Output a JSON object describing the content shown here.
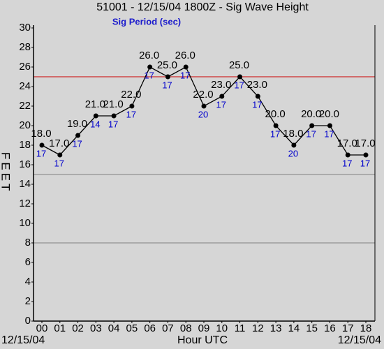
{
  "chart_data": {
    "type": "line",
    "title": "51001 - 12/15/04 1800Z - Sig Wave Height",
    "subtitle": "Sig Period (sec)",
    "ylabel": "FEET",
    "xlabel": "Hour UTC",
    "start_date": "12/15/04",
    "end_date": "12/15/04",
    "categories": [
      "00",
      "01",
      "02",
      "03",
      "04",
      "05",
      "06",
      "07",
      "08",
      "09",
      "10",
      "11",
      "12",
      "13",
      "14",
      "15",
      "16",
      "17",
      "18"
    ],
    "values": [
      18,
      17,
      19,
      21,
      21,
      22,
      26,
      25,
      26,
      22,
      23,
      25,
      23,
      20,
      18,
      20,
      20,
      17,
      17
    ],
    "value_labels": [
      "18.0",
      "17.0",
      "19.0",
      "21.0",
      "21.0",
      "22.0",
      "26.0",
      "25.0",
      "26.0",
      "22.0",
      "23.0",
      "25.0",
      "23.0",
      "20.0",
      "18.0",
      "20.0",
      "20.0",
      "17.0",
      "17.0"
    ],
    "periods": [
      17,
      17,
      17,
      14,
      17,
      17,
      17,
      17,
      17,
      20,
      17,
      17,
      17,
      17,
      20,
      17,
      17,
      17,
      17
    ],
    "color": "#000000",
    "period_color": "#0000cc",
    "ylim": [
      0,
      30
    ],
    "yticks": [
      0,
      2,
      4,
      6,
      8,
      10,
      12,
      14,
      16,
      18,
      20,
      22,
      24,
      26,
      28,
      30
    ],
    "hlines": [
      {
        "value": 25,
        "color": "#cc0000"
      },
      {
        "value": 15,
        "color": "#808080"
      },
      {
        "value": 8,
        "color": "#808080"
      }
    ]
  }
}
